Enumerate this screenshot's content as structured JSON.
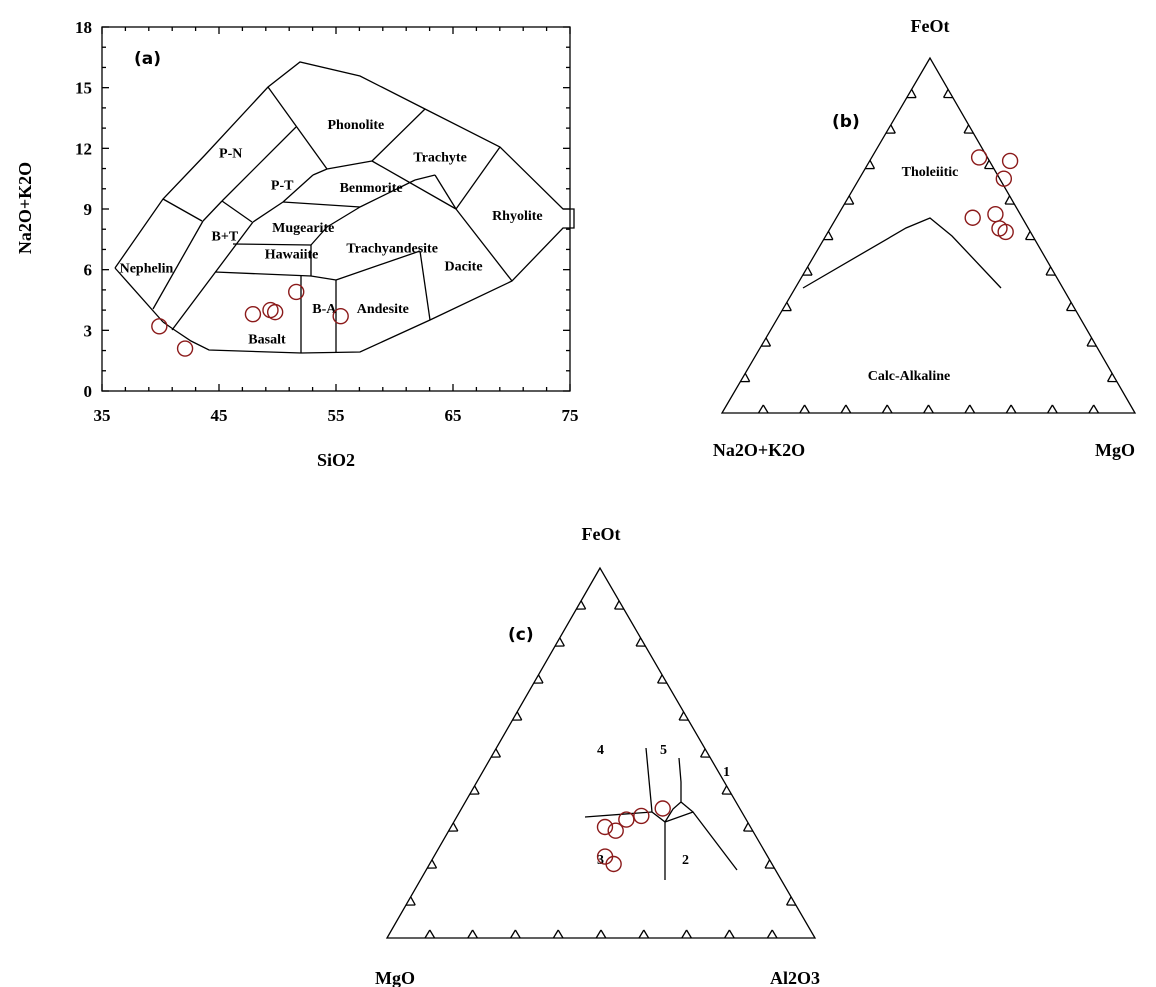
{
  "chart_data": [
    {
      "panel": "a",
      "type": "scatter",
      "panel_label": "(a)",
      "xlabel": "SiO2",
      "ylabel": "Na2O+K2O",
      "xlim": [
        35,
        75
      ],
      "ylim": [
        0,
        18
      ],
      "xticks": [
        35,
        45,
        55,
        65,
        75
      ],
      "yticks": [
        0,
        3,
        6,
        9,
        12,
        15,
        18
      ],
      "x_tick_labels": [
        "35",
        "45",
        "55",
        "65",
        "75"
      ],
      "y_tick_labels": [
        "0",
        "3",
        "6",
        "9",
        "12",
        "15",
        "18"
      ],
      "field_labels": [
        {
          "text": "Nephelin",
          "x": 38.8,
          "y": 6.1
        },
        {
          "text": "B+T",
          "x": 45.5,
          "y": 7.7
        },
        {
          "text": "P-N",
          "x": 46.0,
          "y": 11.8
        },
        {
          "text": "P-T",
          "x": 50.4,
          "y": 10.2
        },
        {
          "text": "Phonolite",
          "x": 56.7,
          "y": 13.2
        },
        {
          "text": "Trachyte",
          "x": 63.9,
          "y": 11.6
        },
        {
          "text": "Benmorite",
          "x": 58.0,
          "y": 10.1
        },
        {
          "text": "Mugearite",
          "x": 52.2,
          "y": 8.1
        },
        {
          "text": "Hawaiite",
          "x": 51.2,
          "y": 6.8
        },
        {
          "text": "Trachyandesite",
          "x": 59.8,
          "y": 7.1
        },
        {
          "text": "Rhyolite",
          "x": 70.5,
          "y": 8.7
        },
        {
          "text": "Dacite",
          "x": 65.9,
          "y": 6.2
        },
        {
          "text": "B-A",
          "x": 54.0,
          "y": 4.1
        },
        {
          "text": "Andesite",
          "x": 59.0,
          "y": 4.1
        },
        {
          "text": "Basalt",
          "x": 49.1,
          "y": 2.6
        }
      ],
      "series": [
        {
          "x": [
            39.9,
            42.1,
            47.9,
            49.4,
            49.8,
            51.6,
            55.4
          ],
          "y": [
            3.2,
            2.1,
            3.8,
            4.0,
            3.9,
            4.9,
            3.7
          ]
        }
      ]
    },
    {
      "panel": "b",
      "type": "scatter",
      "subtype": "ternary",
      "panel_label": "(b)",
      "apex_labels": {
        "top": "FeOt",
        "left": "Na2O+K2O",
        "right": "MgO"
      },
      "field_labels": [
        "Tholeiitic",
        "Calc-Alkaline"
      ],
      "points": [
        {
          "FeOt": 72,
          "MgO": 26
        },
        {
          "FeOt": 71,
          "MgO": 34
        },
        {
          "FeOt": 66,
          "MgO": 35
        },
        {
          "FeOt": 56,
          "MgO": 38
        },
        {
          "FeOt": 55,
          "MgO": 33
        },
        {
          "FeOt": 52,
          "MgO": 41
        },
        {
          "FeOt": 51,
          "MgO": 43
        }
      ]
    },
    {
      "panel": "c",
      "type": "scatter",
      "subtype": "ternary",
      "panel_label": "(c)",
      "apex_labels": {
        "top": "FeOt",
        "left": "MgO",
        "right": "Al2O3"
      },
      "field_labels": [
        "1",
        "2",
        "3",
        "4",
        "5"
      ],
      "points": [
        {
          "FeOt": 35,
          "Al2O3": 47
        },
        {
          "FeOt": 33,
          "Al2O3": 43
        },
        {
          "FeOt": 32,
          "Al2O3": 40
        },
        {
          "FeOt": 30,
          "Al2O3": 36
        },
        {
          "FeOt": 29,
          "Al2O3": 39
        },
        {
          "FeOt": 22,
          "Al2O3": 40
        },
        {
          "FeOt": 20,
          "Al2O3": 43
        }
      ]
    }
  ]
}
